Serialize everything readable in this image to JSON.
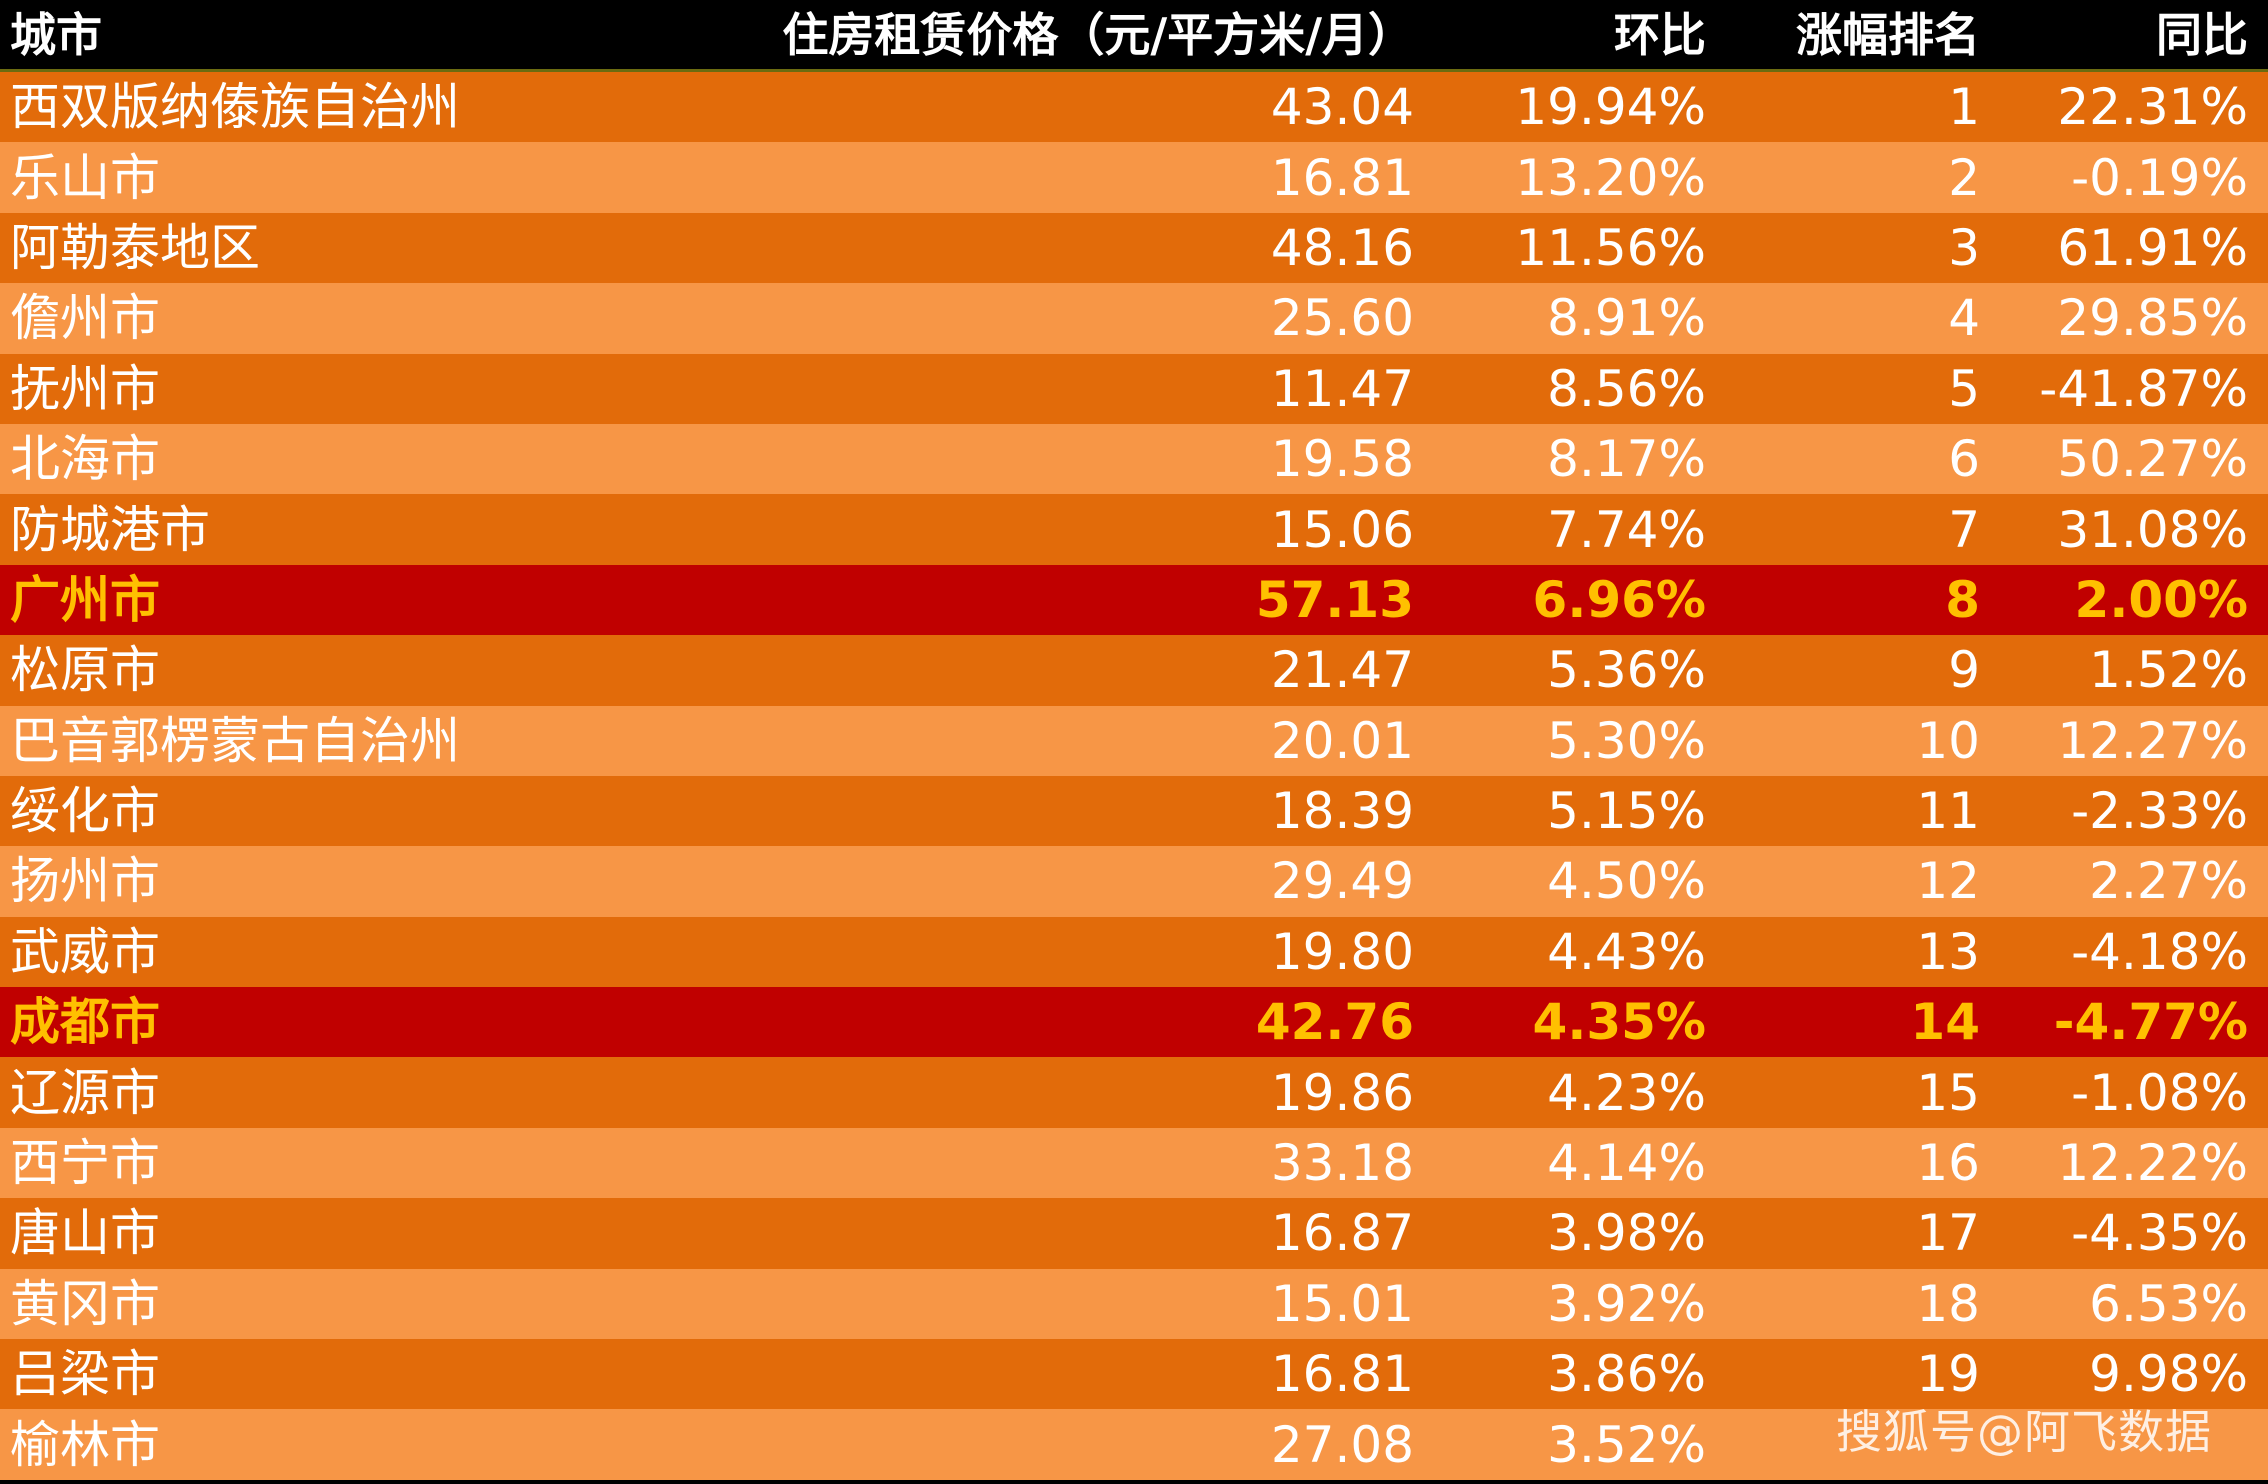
{
  "chart_data": {
    "type": "table",
    "columns": [
      "城市",
      "住房租赁价格（元/平方米/月）",
      "环比",
      "涨幅排名",
      "同比"
    ],
    "rows": [
      {
        "city": "西双版纳傣族自治州",
        "price": "43.04",
        "mom": "19.94%",
        "rank": "1",
        "yoy": "22.31%",
        "highlight": false
      },
      {
        "city": "乐山市",
        "price": "16.81",
        "mom": "13.20%",
        "rank": "2",
        "yoy": "-0.19%",
        "highlight": false
      },
      {
        "city": "阿勒泰地区",
        "price": "48.16",
        "mom": "11.56%",
        "rank": "3",
        "yoy": "61.91%",
        "highlight": false
      },
      {
        "city": "儋州市",
        "price": "25.60",
        "mom": "8.91%",
        "rank": "4",
        "yoy": "29.85%",
        "highlight": false
      },
      {
        "city": "抚州市",
        "price": "11.47",
        "mom": "8.56%",
        "rank": "5",
        "yoy": "-41.87%",
        "highlight": false
      },
      {
        "city": "北海市",
        "price": "19.58",
        "mom": "8.17%",
        "rank": "6",
        "yoy": "50.27%",
        "highlight": false
      },
      {
        "city": "防城港市",
        "price": "15.06",
        "mom": "7.74%",
        "rank": "7",
        "yoy": "31.08%",
        "highlight": false
      },
      {
        "city": "广州市",
        "price": "57.13",
        "mom": "6.96%",
        "rank": "8",
        "yoy": "2.00%",
        "highlight": true
      },
      {
        "city": "松原市",
        "price": "21.47",
        "mom": "5.36%",
        "rank": "9",
        "yoy": "1.52%",
        "highlight": false
      },
      {
        "city": "巴音郭楞蒙古自治州",
        "price": "20.01",
        "mom": "5.30%",
        "rank": "10",
        "yoy": "12.27%",
        "highlight": false
      },
      {
        "city": "绥化市",
        "price": "18.39",
        "mom": "5.15%",
        "rank": "11",
        "yoy": "-2.33%",
        "highlight": false
      },
      {
        "city": "扬州市",
        "price": "29.49",
        "mom": "4.50%",
        "rank": "12",
        "yoy": "2.27%",
        "highlight": false
      },
      {
        "city": "武威市",
        "price": "19.80",
        "mom": "4.43%",
        "rank": "13",
        "yoy": "-4.18%",
        "highlight": false
      },
      {
        "city": "成都市",
        "price": "42.76",
        "mom": "4.35%",
        "rank": "14",
        "yoy": "-4.77%",
        "highlight": true
      },
      {
        "city": "辽源市",
        "price": "19.86",
        "mom": "4.23%",
        "rank": "15",
        "yoy": "-1.08%",
        "highlight": false
      },
      {
        "city": "西宁市",
        "price": "33.18",
        "mom": "4.14%",
        "rank": "16",
        "yoy": "12.22%",
        "highlight": false
      },
      {
        "city": "唐山市",
        "price": "16.87",
        "mom": "3.98%",
        "rank": "17",
        "yoy": "-4.35%",
        "highlight": false
      },
      {
        "city": "黄冈市",
        "price": "15.01",
        "mom": "3.92%",
        "rank": "18",
        "yoy": "6.53%",
        "highlight": false
      },
      {
        "city": "吕梁市",
        "price": "16.81",
        "mom": "3.86%",
        "rank": "19",
        "yoy": "9.98%",
        "highlight": false
      },
      {
        "city": "榆林市",
        "price": "27.08",
        "mom": "3.52%",
        "rank": "",
        "yoy": "",
        "highlight": false
      }
    ]
  },
  "colors": {
    "header_bg": "#000000",
    "row_dark": "#e26b0a",
    "row_light": "#f79646",
    "highlight_bg": "#c00000",
    "highlight_text": "#ffc000"
  },
  "watermark": "搜狐号@阿飞数据"
}
